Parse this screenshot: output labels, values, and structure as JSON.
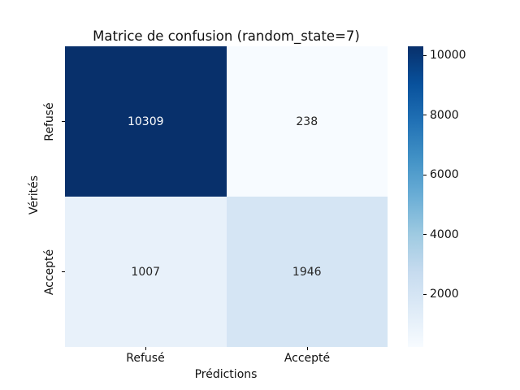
{
  "title": "Matrice de confusion (random_state=7)",
  "axes": {
    "x_label": "Prédictions",
    "y_label": "Vérités",
    "x_ticks": [
      "Refusé",
      "Accepté"
    ],
    "y_ticks": [
      "Refusé",
      "Accepté"
    ]
  },
  "chart_data": {
    "type": "heatmap",
    "title": "Matrice de confusion (random_state=7)",
    "xlabel": "Prédictions",
    "ylabel": "Vérités",
    "x_categories": [
      "Refusé",
      "Accepté"
    ],
    "y_categories": [
      "Refusé",
      "Accepté"
    ],
    "values": [
      [
        10309,
        238
      ],
      [
        1007,
        1946
      ]
    ],
    "vmin": 238,
    "vmax": 10309,
    "colormap": "Blues",
    "colorbar_ticks": [
      2000,
      4000,
      6000,
      8000,
      10000
    ],
    "legend_position": "right-colorbar",
    "grid": false
  },
  "cells": [
    {
      "value": "10309",
      "bg": "#08306b",
      "text_color": "#ffffff"
    },
    {
      "value": "238",
      "bg": "#f7fbff",
      "text_color": "#262626"
    },
    {
      "value": "1007",
      "bg": "#e8f1fa",
      "text_color": "#262626"
    },
    {
      "value": "1946",
      "bg": "#d5e5f4",
      "text_color": "#262626"
    }
  ],
  "colorbar": {
    "stops_bottom_to_top": [
      "#f7fbff",
      "#deebf7",
      "#c6dbef",
      "#9ecae1",
      "#6baed6",
      "#4292c6",
      "#2171b5",
      "#08519c",
      "#08306b"
    ]
  }
}
